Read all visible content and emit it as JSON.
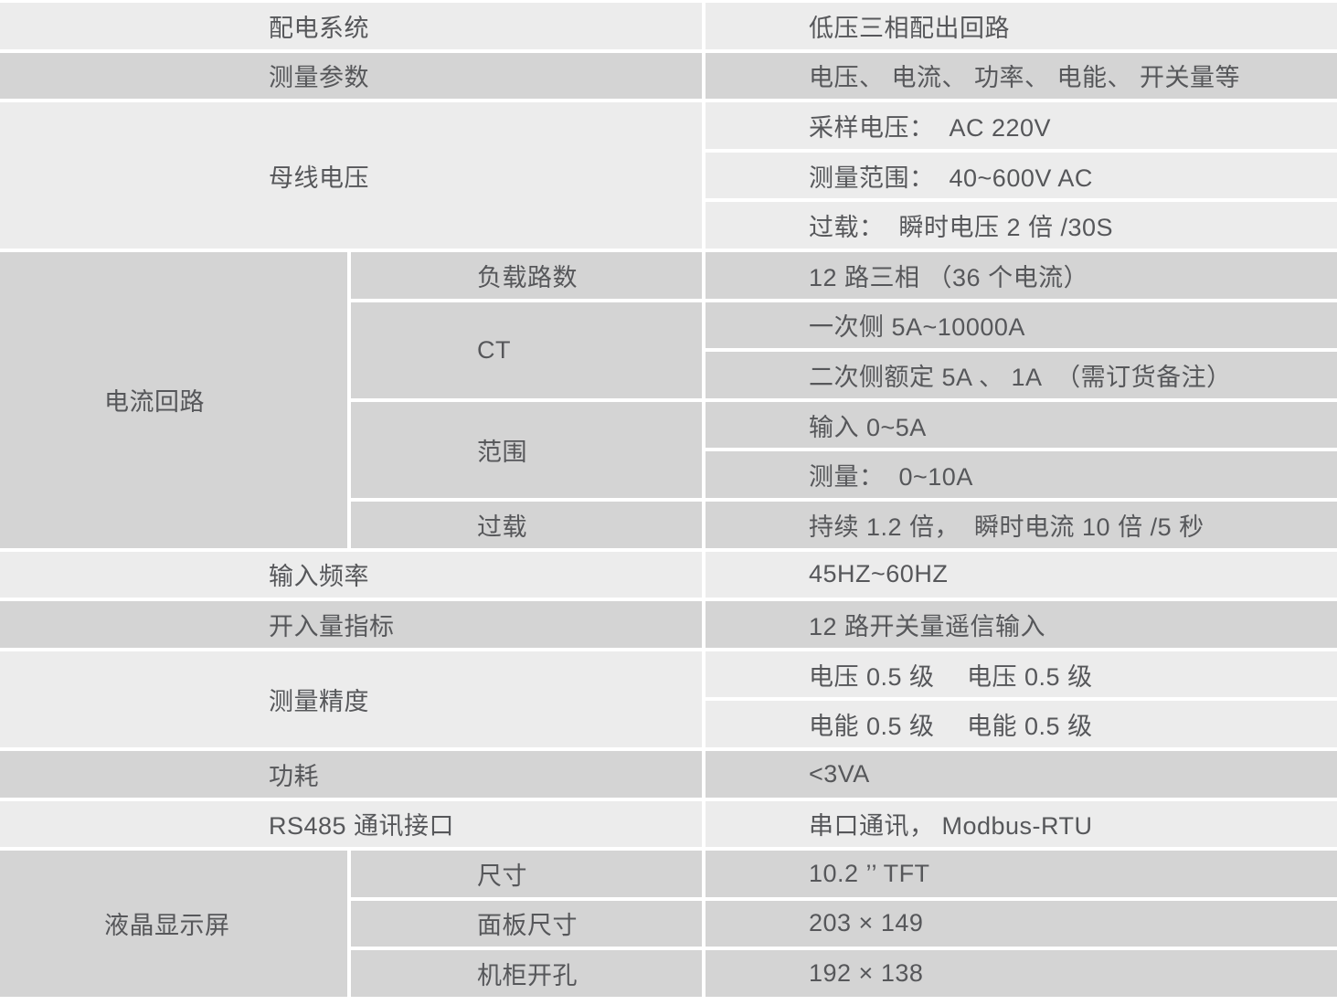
{
  "colors": {
    "row_light": "#ececec",
    "row_dark": "#d4d4d4",
    "separator": "#ffffff",
    "text": "#56575a"
  },
  "table": {
    "groups": [
      {
        "label": "配电系统",
        "values": [
          "低压三相配出回路"
        ]
      },
      {
        "label": "测量参数",
        "values": [
          "电压、 电流、 功率、 电能、 开关量等"
        ]
      },
      {
        "label": "母线电压",
        "values": [
          "采样电压：  AC 220V",
          "测量范围：  40~600V AC",
          "过载：  瞬时电压 2 倍 /30S"
        ]
      },
      {
        "label": "电流回路",
        "subs": [
          {
            "label": "负载路数"
          },
          {
            "label": "CT"
          },
          {
            "label": "范围"
          },
          {
            "label": "过载"
          }
        ],
        "values": [
          "12 路三相 （36 个电流）",
          "一次侧 5A~10000A",
          "二次侧额定 5A 、 1A  （需订货备注）",
          "输入 0~5A",
          "测量：  0~10A",
          "持续 1.2 倍，  瞬时电流 10 倍 /5 秒"
        ]
      },
      {
        "label": "输入频率",
        "values": [
          "45HZ~60HZ"
        ]
      },
      {
        "label": "开入量指标",
        "values": [
          "12 路开关量遥信输入"
        ]
      },
      {
        "label": "测量精度",
        "values": [
          "电压 0.5 级　 电压 0.5 级",
          "电能 0.5 级　 电能 0.5 级"
        ]
      },
      {
        "label": "功耗",
        "values": [
          "<3VA"
        ]
      },
      {
        "label": "RS485 通讯接口",
        "values": [
          "串口通讯， Modbus-RTU"
        ]
      },
      {
        "label": "液晶显示屏",
        "subs": [
          {
            "label": "尺寸"
          },
          {
            "label": "面板尺寸"
          },
          {
            "label": "机柜开孔"
          }
        ],
        "values": [
          "10.2 ’’ TFT",
          "203 × 149",
          "192 × 138"
        ]
      }
    ]
  }
}
